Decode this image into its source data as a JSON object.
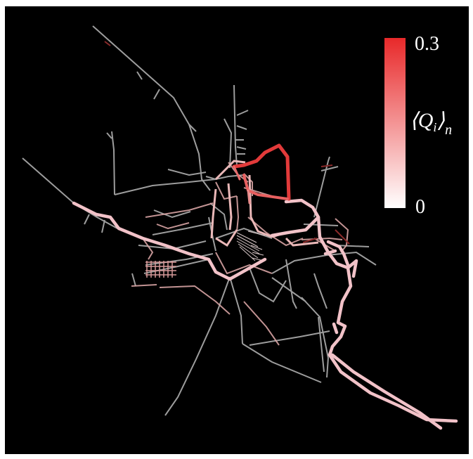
{
  "colorbar": {
    "max_label": "0.3",
    "min_label": "0",
    "title_open": "⟨",
    "title_symbol": "Q",
    "title_index": "i",
    "title_close": "⟩",
    "title_sub": "n",
    "color_high": "#e8292a",
    "color_low": "#ffffff"
  },
  "background_color": "#000000"
}
